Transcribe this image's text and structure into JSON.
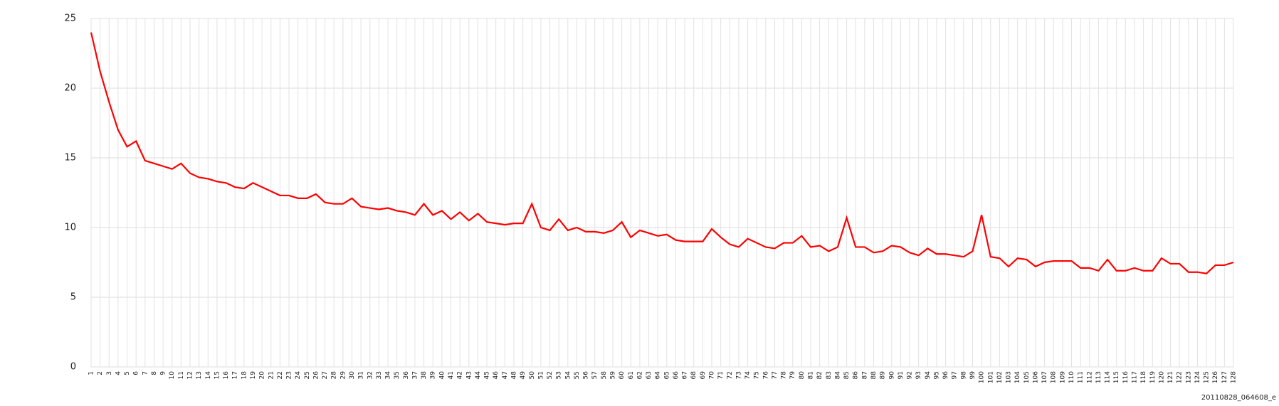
{
  "chart_data": {
    "type": "line",
    "categories": [
      "1",
      "2",
      "3",
      "4",
      "5",
      "6",
      "7",
      "8",
      "9",
      "10",
      "11",
      "12",
      "13",
      "14",
      "15",
      "16",
      "17",
      "18",
      "19",
      "20",
      "21",
      "22",
      "23",
      "24",
      "25",
      "26",
      "27",
      "28",
      "29",
      "30",
      "31",
      "32",
      "33",
      "34",
      "35",
      "36",
      "37",
      "38",
      "39",
      "40",
      "41",
      "42",
      "43",
      "44",
      "45",
      "46",
      "47",
      "48",
      "49",
      "50",
      "51",
      "52",
      "53",
      "54",
      "55",
      "56",
      "57",
      "58",
      "59",
      "60",
      "61",
      "62",
      "63",
      "64",
      "65",
      "66",
      "67",
      "68",
      "69",
      "70",
      "71",
      "72",
      "73",
      "74",
      "75",
      "76",
      "77",
      "78",
      "79",
      "80",
      "81",
      "82",
      "83",
      "84",
      "85",
      "86",
      "87",
      "88",
      "89",
      "90",
      "91",
      "92",
      "93",
      "94",
      "95",
      "96",
      "97",
      "98",
      "99",
      "100",
      "101",
      "102",
      "103",
      "104",
      "105",
      "106",
      "107",
      "108",
      "109",
      "110",
      "111",
      "112",
      "113",
      "114",
      "115",
      "116",
      "117",
      "118",
      "119",
      "120",
      "121",
      "122",
      "123",
      "124",
      "125",
      "126",
      "127",
      "128"
    ],
    "values": [
      24,
      21.2,
      19,
      17,
      15.8,
      16.2,
      14.8,
      14.6,
      14.4,
      14.2,
      14.6,
      13.9,
      13.6,
      13.5,
      13.3,
      13.2,
      12.9,
      12.8,
      13.2,
      12.9,
      12.6,
      12.3,
      12.3,
      12.1,
      12.1,
      12.4,
      11.8,
      11.7,
      11.7,
      12.1,
      11.5,
      11.4,
      11.3,
      11.4,
      11.2,
      11.1,
      10.9,
      11.7,
      10.9,
      11.2,
      10.6,
      11.1,
      10.5,
      11,
      10.4,
      10.3,
      10.2,
      10.3,
      10.3,
      11.7,
      10,
      9.8,
      10.6,
      9.8,
      10,
      9.7,
      9.7,
      9.6,
      9.8,
      10.4,
      9.3,
      9.8,
      9.6,
      9.4,
      9.5,
      9.1,
      9,
      9,
      9,
      9.9,
      9.3,
      8.8,
      8.6,
      9.2,
      8.9,
      8.6,
      8.5,
      8.9,
      8.9,
      9.4,
      8.6,
      8.7,
      8.3,
      8.6,
      10.7,
      8.6,
      8.6,
      8.2,
      8.3,
      8.7,
      8.6,
      8.2,
      8,
      8.5,
      8.1,
      8.1,
      8,
      7.9,
      8.3,
      10.9,
      7.9,
      7.8,
      7.2,
      7.8,
      7.7,
      7.2,
      7.5,
      7.6,
      7.6,
      7.6,
      7.1,
      7.1,
      6.9,
      7.7,
      6.9,
      6.9,
      7.1,
      6.9,
      6.9,
      7.8,
      7.4,
      7.4,
      6.8,
      6.8,
      6.7,
      7.3,
      7.3,
      7.5
    ],
    "color": "#ff0000",
    "ylim": [
      0,
      25
    ],
    "yticks": [
      0,
      5,
      10,
      15,
      20,
      25
    ],
    "grid": true,
    "footer": "20110828_064608_e"
  }
}
